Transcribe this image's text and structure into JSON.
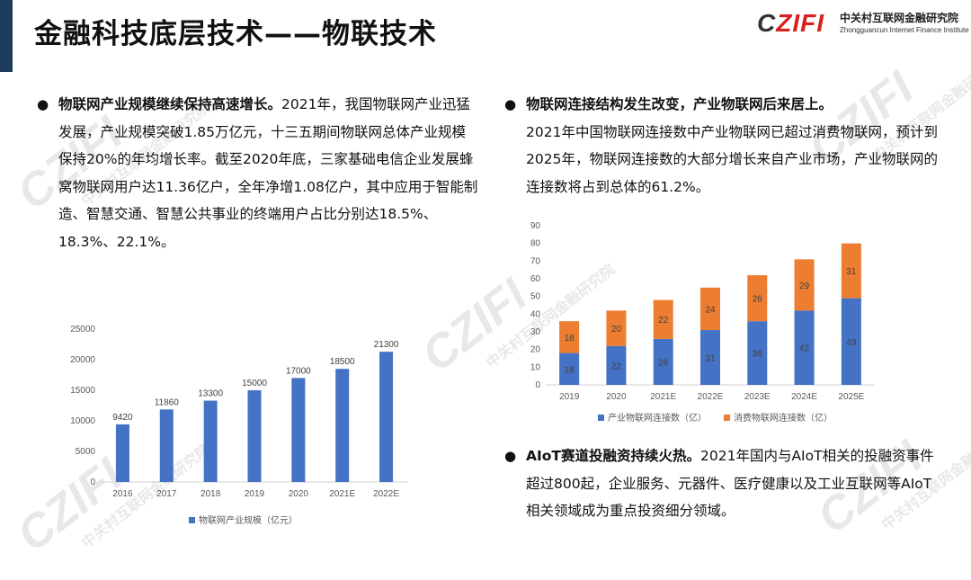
{
  "title": "金融科技底层技术——物联技术",
  "logo": {
    "mark_c": "C",
    "mark_rest": "ZIFI",
    "cn": "中关村互联网金融研究院",
    "en": "Zhongguancun Internet Finance Institute"
  },
  "watermark": {
    "mark": "CZIFI",
    "cn": "中关村互联网金融研究院"
  },
  "sections": [
    {
      "bullet": "●",
      "heading": "物联网产业规模继续保持高速增长。",
      "body": "2021年，我国物联网产业迅猛发展，产业规模突破1.85万亿元，十三五期间物联网总体产业规模保持20%的年均增长率。截至2020年底，三家基础电信企业发展蜂窝物联网用户达11.36亿户，全年净增1.08亿户，其中应用于智能制造、智慧交通、智慧公共事业的终端用户占比分别达18.5%、18.3%、22.1%。"
    },
    {
      "bullet": "●",
      "heading": "物联网连接结构发生改变，产业物联网后来居上。",
      "body": "2021年中国物联网连接数中产业物联网已超过消费物联网，预计到2025年，物联网连接数的大部分增长来自产业市场，产业物联网的连接数将占到总体的61.2%。"
    },
    {
      "bullet": "●",
      "heading": "AIoT赛道投融资持续火热。",
      "body": "2021年国内与AIoT相关的投融资事件超过800起，企业服务、元器件、医疗健康以及工业互联网等AIoT相关领域成为重点投资细分领域。"
    }
  ],
  "chart_data": [
    {
      "type": "bar",
      "categories": [
        "2016",
        "2017",
        "2018",
        "2019",
        "2020",
        "2021E",
        "2022E"
      ],
      "series": [
        {
          "name": "物联网产业规模（亿元）",
          "values": [
            9420,
            11860,
            13300,
            15000,
            17000,
            18500,
            21300
          ],
          "color": "#4472c4"
        }
      ],
      "y_ticks": [
        0,
        5000,
        10000,
        15000,
        20000,
        25000
      ],
      "ylim": [
        0,
        25000
      ],
      "grid": false,
      "legend": "bottom",
      "data_labels": true
    },
    {
      "type": "bar",
      "stacked": true,
      "categories": [
        "2019",
        "2020",
        "2021E",
        "2022E",
        "2023E",
        "2024E",
        "2025E"
      ],
      "series": [
        {
          "name": "产业物联网连接数（亿）",
          "values": [
            18,
            22,
            26,
            31,
            36,
            42,
            49
          ],
          "color": "#4472c4"
        },
        {
          "name": "消费物联网连接数（亿）",
          "values": [
            18,
            20,
            22,
            24,
            26,
            29,
            31
          ],
          "color": "#ed7d31"
        }
      ],
      "y_ticks": [
        0,
        10,
        20,
        30,
        40,
        50,
        60,
        70,
        80,
        90
      ],
      "ylim": [
        0,
        90
      ],
      "grid": false,
      "legend": "bottom",
      "data_labels": true
    }
  ]
}
